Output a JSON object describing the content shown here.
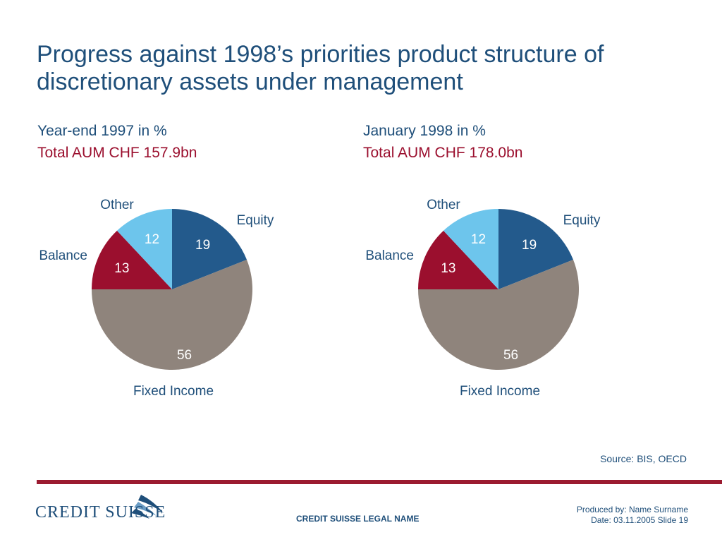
{
  "title": "Progress against 1998’s priorities product structure of discretionary assets under management",
  "colors": {
    "equity": "#235a8c",
    "fixed_income": "#8f847c",
    "balance": "#9b0f2e",
    "other": "#6dc5ec",
    "title": "#1f4f7a",
    "accent": "#9b0f2e",
    "divider": "#9b1b30"
  },
  "chart_data": [
    {
      "type": "pie",
      "subtitle": "Year-end 1997 in %",
      "total_label": "Total AUM CHF 157.9bn",
      "slices": [
        {
          "label": "Equity",
          "value": 19
        },
        {
          "label": "Fixed Income",
          "value": 56
        },
        {
          "label": "Balance",
          "value": 13
        },
        {
          "label": "Other",
          "value": 12
        }
      ]
    },
    {
      "type": "pie",
      "subtitle": "January 1998 in %",
      "total_label": "Total AUM CHF 178.0bn",
      "slices": [
        {
          "label": "Equity",
          "value": 19
        },
        {
          "label": "Fixed Income",
          "value": 56
        },
        {
          "label": "Balance",
          "value": 13
        },
        {
          "label": "Other",
          "value": 12
        }
      ]
    }
  ],
  "source": "Source: BIS, OECD",
  "footer": {
    "logo_text": "CREDIT SUISSE",
    "legal_name": "CREDIT SUISSE LEGAL NAME",
    "produced_by": "Produced by: Name Surname",
    "date_slide": "Date: 03.11.2005 Slide 19"
  }
}
